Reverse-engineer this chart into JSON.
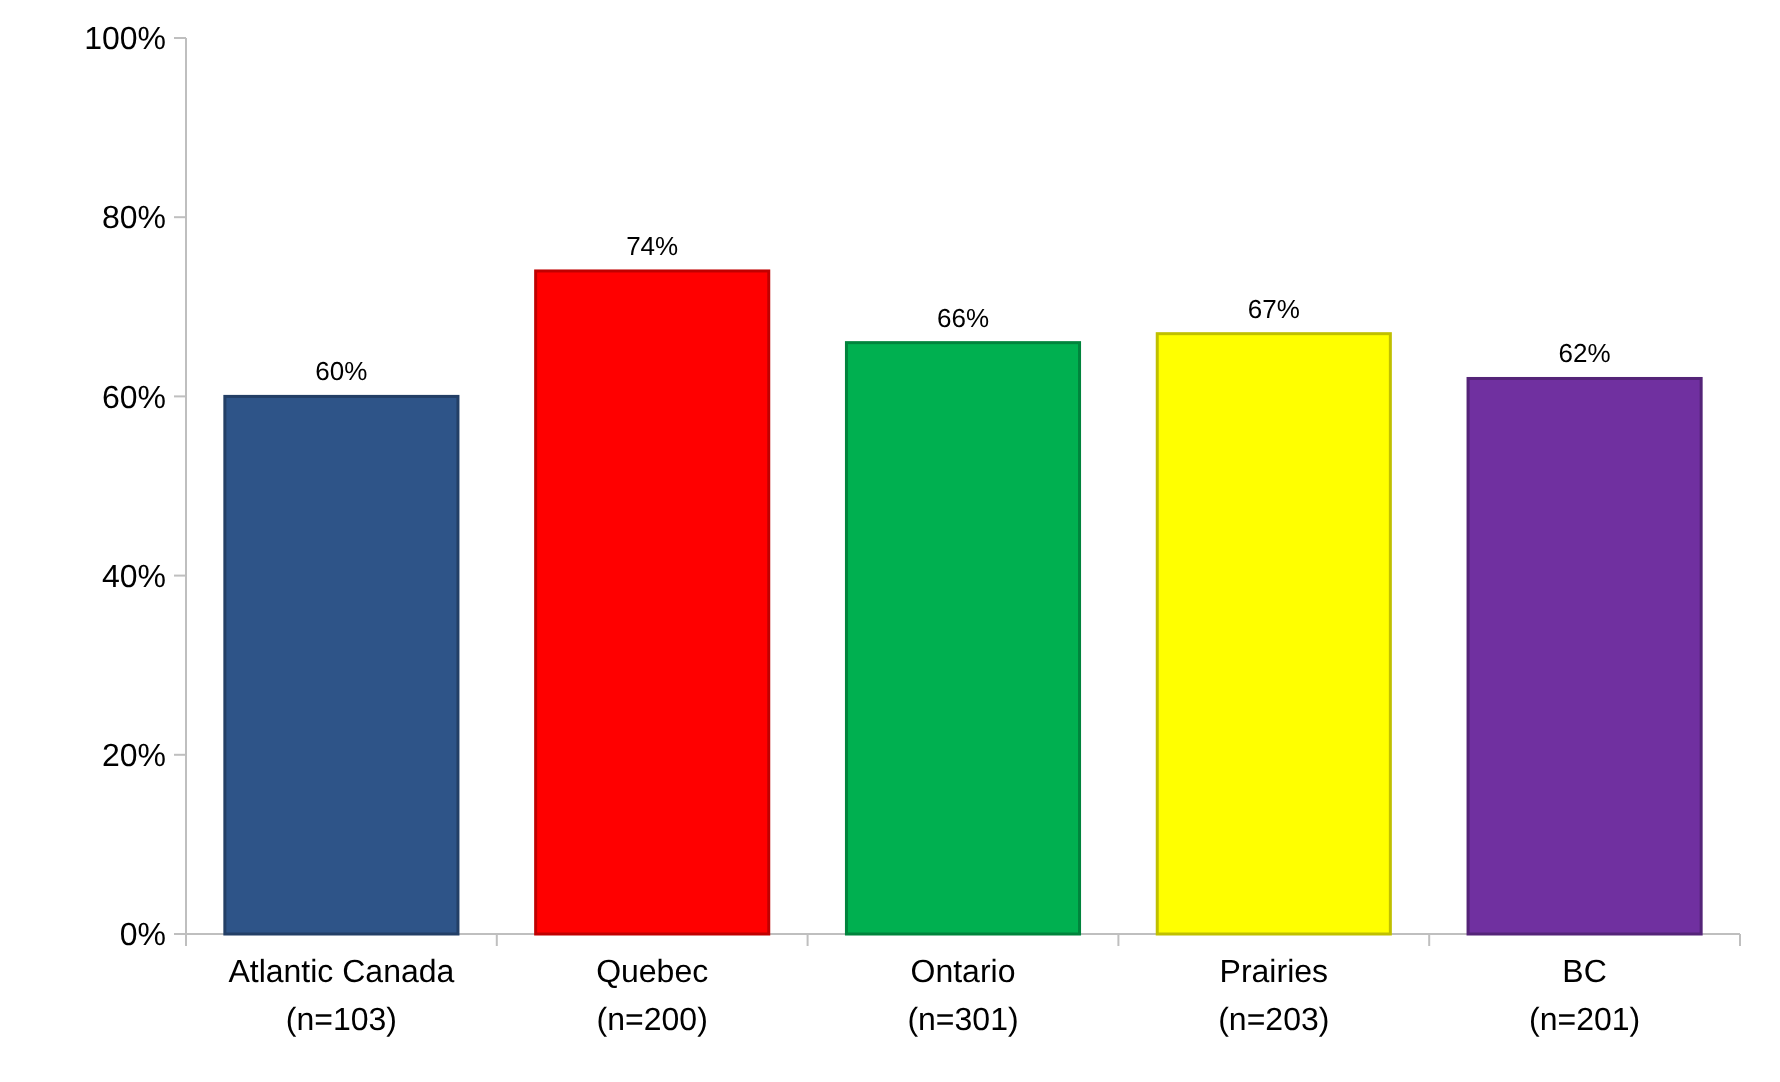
{
  "chart_data": {
    "type": "bar",
    "categories": [
      "Atlantic Canada\n(n=103)",
      "Quebec\n(n=200)",
      "Ontario\n(n=301)",
      "Prairies\n(n=203)",
      "BC\n(n=201)"
    ],
    "values": [
      60,
      74,
      66,
      67,
      62
    ],
    "colors": [
      "#2e5488",
      "#ff0000",
      "#00b050",
      "#ffff00",
      "#7030a0"
    ],
    "value_labels": [
      "60%",
      "74%",
      "66%",
      "67%",
      "62%"
    ],
    "ylim": [
      0,
      100
    ],
    "yticks": [
      {
        "value": 0,
        "label": "0%"
      },
      {
        "value": 20,
        "label": "20%"
      },
      {
        "value": 40,
        "label": "40%"
      },
      {
        "value": 60,
        "label": "60%"
      },
      {
        "value": 80,
        "label": "80%"
      },
      {
        "value": 100,
        "label": "100%"
      }
    ],
    "grid": false
  }
}
